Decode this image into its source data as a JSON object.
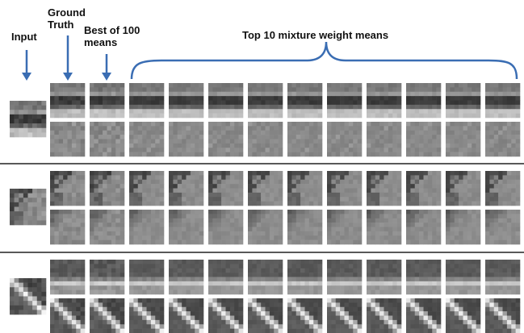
{
  "labels": {
    "input": "Input",
    "ground_truth": "Ground Truth",
    "best": "Best of 100 means",
    "top": "Top 10 mixture weight means"
  }
}
